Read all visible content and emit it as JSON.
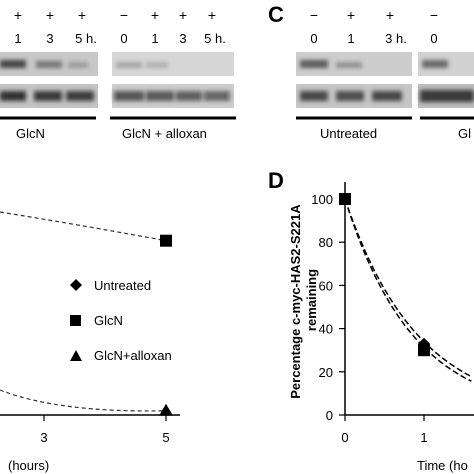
{
  "blot_B": {
    "treatment_row": [
      "+",
      "+",
      "+",
      "−",
      "+",
      "+",
      "+"
    ],
    "time_row": [
      "1",
      "3",
      "5 h.",
      "0",
      "1",
      "3",
      "5 h."
    ],
    "groups": [
      "GlcN",
      "GlcN + alloxan"
    ]
  },
  "blot_C": {
    "panel_letter": "C",
    "treatment_row": [
      "−",
      "+",
      "+",
      "−"
    ],
    "time_row": [
      "0",
      "1",
      "3 h.",
      "0"
    ],
    "groups": [
      "Untreated",
      "Gl"
    ]
  },
  "panel_D_letter": "D",
  "chart_data": [
    {
      "type": "line",
      "panel": "B (partial)",
      "xlabel": "(hours)",
      "x_ticks": [
        3,
        5
      ],
      "legend": [
        "Untreated",
        "GlcN",
        "GlcN+alloxan"
      ],
      "series": [
        {
          "name": "GlcN",
          "marker": "square",
          "x": [
            5
          ],
          "y": [
            83
          ]
        },
        {
          "name": "GlcN+alloxan",
          "marker": "triangle",
          "x": [
            5
          ],
          "y": [
            2
          ]
        }
      ]
    },
    {
      "type": "line",
      "panel": "D",
      "xlabel": "Time (ho",
      "ylabel": "Percentage c-myc-HAS2-S221A remaining",
      "ylim": [
        0,
        110
      ],
      "y_ticks": [
        0,
        20,
        40,
        60,
        80,
        100
      ],
      "x_ticks": [
        0,
        1
      ],
      "series": [
        {
          "name": "Untreated",
          "marker": "diamond",
          "x": [
            0,
            1
          ],
          "y": [
            100,
            33
          ]
        },
        {
          "name": "GlcN",
          "marker": "square",
          "x": [
            0,
            1
          ],
          "y": [
            100,
            30
          ]
        }
      ]
    }
  ]
}
